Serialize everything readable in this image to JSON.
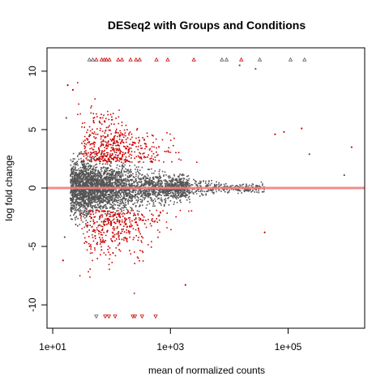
{
  "chart_data": {
    "type": "scatter",
    "title": "DESeq2 with Groups and Conditions",
    "xlabel": "mean of normalized counts",
    "ylabel": "log fold change",
    "x_scale": "log10",
    "x_range": [
      8,
      2000000
    ],
    "y_range": [
      -12,
      12
    ],
    "x_ticks": [
      {
        "value": 10,
        "label": "1e+01"
      },
      {
        "value": 1000,
        "label": "1e+03"
      },
      {
        "value": 100000,
        "label": "1e+05"
      }
    ],
    "y_ticks": [
      {
        "value": 10,
        "label": "10"
      },
      {
        "value": 5,
        "label": "5"
      },
      {
        "value": 0,
        "label": "0"
      },
      {
        "value": -5,
        "label": "-5"
      },
      {
        "value": -10,
        "label": "-10"
      }
    ],
    "reference_line": {
      "y": 0,
      "color": "#f08080"
    },
    "grid": false,
    "colors": {
      "not_significant": "#555555",
      "significant": "#cc0000",
      "axis": "#000000"
    },
    "clipped_up_points": [
      {
        "x": 42,
        "significant": false
      },
      {
        "x": 48,
        "significant": false
      },
      {
        "x": 55,
        "significant": true
      },
      {
        "x": 68,
        "significant": true
      },
      {
        "x": 75,
        "significant": true
      },
      {
        "x": 82,
        "significant": true
      },
      {
        "x": 92,
        "significant": true
      },
      {
        "x": 130,
        "significant": true
      },
      {
        "x": 150,
        "significant": true
      },
      {
        "x": 210,
        "significant": true
      },
      {
        "x": 260,
        "significant": true
      },
      {
        "x": 300,
        "significant": true
      },
      {
        "x": 580,
        "significant": true
      },
      {
        "x": 900,
        "significant": true
      },
      {
        "x": 2500,
        "significant": true
      },
      {
        "x": 7500,
        "significant": false
      },
      {
        "x": 9000,
        "significant": false
      },
      {
        "x": 16000,
        "significant": true
      },
      {
        "x": 33000,
        "significant": false
      },
      {
        "x": 110000,
        "significant": false
      },
      {
        "x": 190000,
        "significant": false
      }
    ],
    "clipped_down_points": [
      {
        "x": 55,
        "significant": false
      },
      {
        "x": 78,
        "significant": true
      },
      {
        "x": 90,
        "significant": true
      },
      {
        "x": 115,
        "significant": true
      },
      {
        "x": 230,
        "significant": true
      },
      {
        "x": 250,
        "significant": true
      },
      {
        "x": 330,
        "significant": true
      },
      {
        "x": 560,
        "significant": true
      }
    ],
    "highlighted_points": [
      {
        "x": 18,
        "y": 8.8,
        "significant": true
      },
      {
        "x": 22,
        "y": 8.4,
        "significant": true
      },
      {
        "x": 15000,
        "y": 10.5,
        "significant": false
      },
      {
        "x": 28000,
        "y": 10.2,
        "significant": false
      },
      {
        "x": 85000,
        "y": 4.8,
        "significant": true
      },
      {
        "x": 170000,
        "y": 5.1,
        "significant": true
      },
      {
        "x": 230000,
        "y": 2.9,
        "significant": false
      },
      {
        "x": 1200000,
        "y": 3.5,
        "significant": true
      },
      {
        "x": 900000,
        "y": 1.1,
        "significant": false
      },
      {
        "x": 60000,
        "y": 4.6,
        "significant": true
      },
      {
        "x": 40000,
        "y": -3.8,
        "significant": true
      },
      {
        "x": 1800,
        "y": -8.3,
        "significant": true
      },
      {
        "x": 15,
        "y": -6.2,
        "significant": true
      },
      {
        "x": 17,
        "y": 6.0,
        "significant": false
      },
      {
        "x": 16,
        "y": -4.2,
        "significant": false
      }
    ]
  }
}
